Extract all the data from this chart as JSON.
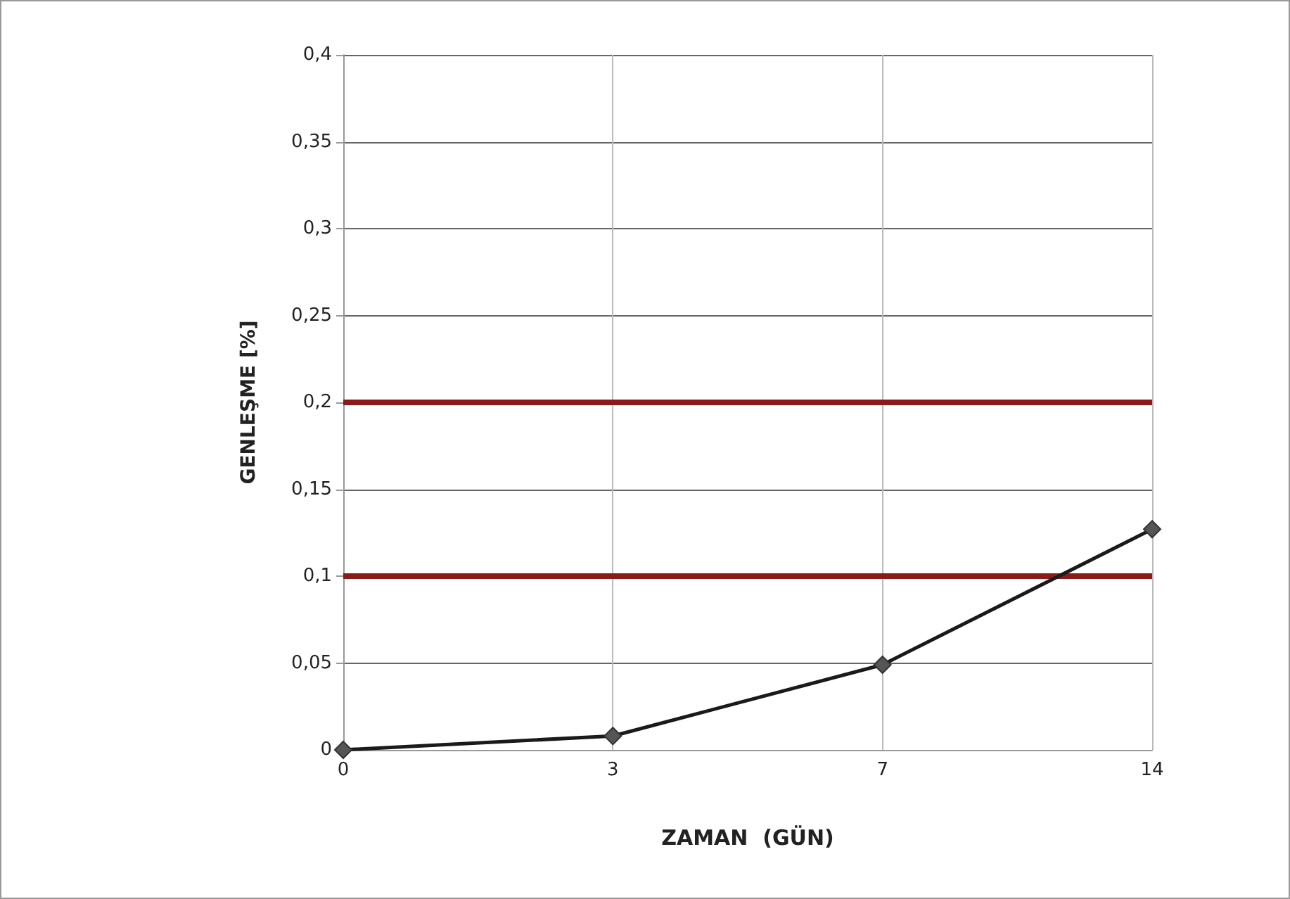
{
  "chart_data": {
    "type": "line",
    "xlabel": "ZAMAN  (GÜN)",
    "ylabel": "GENLEŞME [%]",
    "categories": [
      "0",
      "3",
      "7",
      "14"
    ],
    "series": [
      {
        "color": "#1a1a1a",
        "values": [
          0,
          0.008,
          0.049,
          0.127
        ]
      }
    ],
    "ylim": [
      0,
      0.4
    ],
    "yticks": [
      {
        "value": 0,
        "label": "0"
      },
      {
        "value": 0.05,
        "label": "0,05"
      },
      {
        "value": 0.1,
        "label": "0,1"
      },
      {
        "value": 0.15,
        "label": "0,15"
      },
      {
        "value": 0.2,
        "label": "0,2"
      },
      {
        "value": 0.25,
        "label": "0,25"
      },
      {
        "value": 0.3,
        "label": "0,3"
      },
      {
        "value": 0.35,
        "label": "0,35"
      },
      {
        "value": 0.4,
        "label": "0,4"
      }
    ],
    "ref_lines": [
      {
        "axis": "y",
        "value": 0.1,
        "color": "#8b1a1a"
      },
      {
        "axis": "y",
        "value": 0.2,
        "color": "#8b1a1a"
      }
    ],
    "grid": true,
    "marker": "diamond",
    "line_style": "solid"
  }
}
